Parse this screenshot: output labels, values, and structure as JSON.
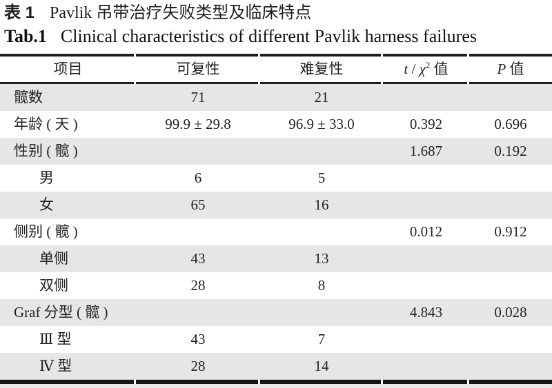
{
  "title": {
    "cn_label": "表 1",
    "cn_text": "Pavlik 吊带治疗失败类型及临床特点",
    "en_label": "Tab.1",
    "en_text": "Clinical characteristics of different Pavlik harness failures"
  },
  "table": {
    "header": {
      "col1": "项目",
      "col2": "可复性",
      "col3": "难复性",
      "col4_t": "t",
      "col4_slash": " / ",
      "col4_chi": "χ",
      "col4_sup": "2",
      "col4_unit": " 值",
      "col5_p": "P",
      "col5_unit": " 值"
    },
    "rows": [
      {
        "cells": [
          "髋数",
          "71",
          "21",
          "",
          ""
        ],
        "indent": false,
        "shaded": true
      },
      {
        "cells": [
          "年龄 ( 天 )",
          "99.9 ± 29.8",
          "96.9 ± 33.0",
          "0.392",
          "0.696"
        ],
        "indent": false,
        "shaded": false
      },
      {
        "cells": [
          "性别 ( 髋 )",
          "",
          "",
          "1.687",
          "0.192"
        ],
        "indent": false,
        "shaded": true
      },
      {
        "cells": [
          "男",
          "6",
          "5",
          "",
          ""
        ],
        "indent": true,
        "shaded": false
      },
      {
        "cells": [
          "女",
          "65",
          "16",
          "",
          ""
        ],
        "indent": true,
        "shaded": true
      },
      {
        "cells": [
          "侧别 ( 髋 )",
          "",
          "",
          "0.012",
          "0.912"
        ],
        "indent": false,
        "shaded": false
      },
      {
        "cells": [
          "单侧",
          "43",
          "13",
          "",
          ""
        ],
        "indent": true,
        "shaded": true
      },
      {
        "cells": [
          "双侧",
          "28",
          "8",
          "",
          ""
        ],
        "indent": true,
        "shaded": false
      },
      {
        "cells": [
          "Graf 分型 ( 髋 )",
          "",
          "",
          "4.843",
          "0.028"
        ],
        "indent": false,
        "shaded": true
      },
      {
        "cells": [
          "Ⅲ 型",
          "43",
          "7",
          "",
          ""
        ],
        "indent": true,
        "shaded": false
      },
      {
        "cells": [
          "Ⅳ 型",
          "28",
          "14",
          "",
          ""
        ],
        "indent": true,
        "shaded": true
      }
    ]
  },
  "colors": {
    "row_shade": "#e6e6e6",
    "rule": "#1e1e1e",
    "text": "#222222"
  }
}
